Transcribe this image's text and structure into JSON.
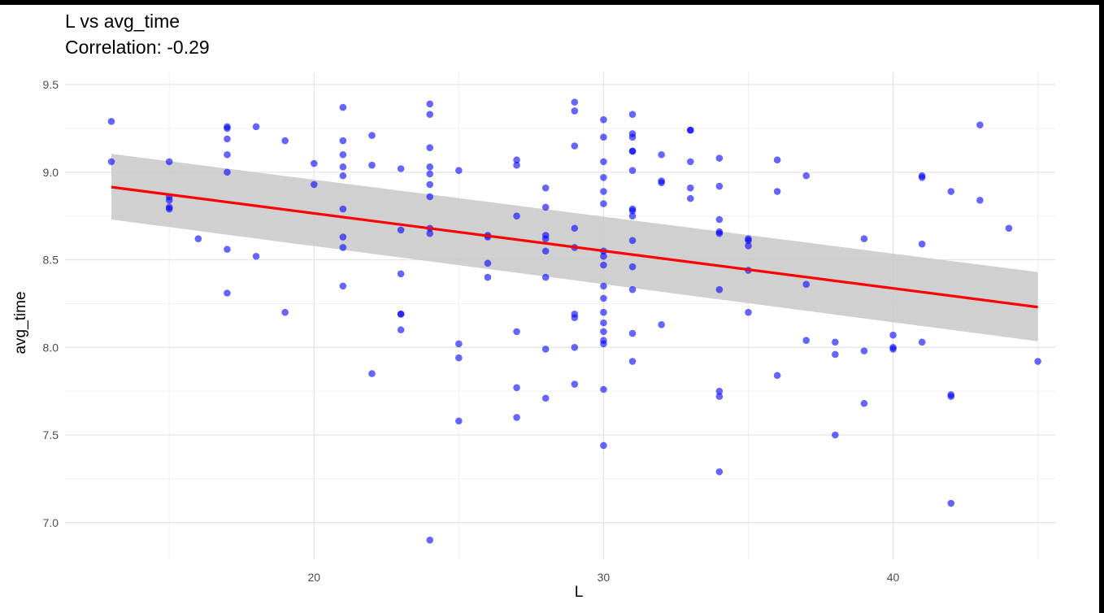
{
  "chart_data": {
    "type": "scatter",
    "title": "L vs avg_time",
    "subtitle": "Correlation: -0.29",
    "xlabel": "L",
    "ylabel": "avg_time",
    "xlim": [
      11.4,
      45.6
    ],
    "ylim": [
      6.79,
      9.57
    ],
    "x_ticks": [
      20,
      30,
      40
    ],
    "y_ticks": [
      7.0,
      7.5,
      8.0,
      8.5,
      9.0,
      9.5
    ],
    "grid": true,
    "legend": "none",
    "point_color": "#0000ff",
    "fit_color": "#ff0000",
    "band_color": "#c8c8c8",
    "fit_line": {
      "x": [
        13,
        45
      ],
      "y": [
        8.915,
        8.23
      ]
    },
    "confidence_band": {
      "x": [
        13,
        45
      ],
      "upper": [
        9.105,
        8.43
      ],
      "lower": [
        8.73,
        8.035
      ]
    },
    "points": [
      [
        13,
        9.29
      ],
      [
        13,
        9.06
      ],
      [
        15,
        9.06
      ],
      [
        15,
        8.86
      ],
      [
        15,
        8.84
      ],
      [
        15,
        8.79
      ],
      [
        15,
        8.8
      ],
      [
        16,
        8.62
      ],
      [
        17,
        9.26
      ],
      [
        17,
        9.25
      ],
      [
        17,
        9.19
      ],
      [
        17,
        9.1
      ],
      [
        17,
        9.0
      ],
      [
        17,
        8.56
      ],
      [
        17,
        8.31
      ],
      [
        18,
        9.26
      ],
      [
        18,
        8.52
      ],
      [
        19,
        9.18
      ],
      [
        19,
        8.2
      ],
      [
        20,
        9.05
      ],
      [
        20,
        8.93
      ],
      [
        21,
        9.37
      ],
      [
        21,
        9.18
      ],
      [
        21,
        9.1
      ],
      [
        21,
        9.03
      ],
      [
        21,
        8.98
      ],
      [
        21,
        8.79
      ],
      [
        21,
        8.63
      ],
      [
        21,
        8.57
      ],
      [
        21,
        8.35
      ],
      [
        22,
        9.21
      ],
      [
        22,
        9.04
      ],
      [
        22,
        7.85
      ],
      [
        23,
        9.02
      ],
      [
        23,
        8.67
      ],
      [
        23,
        8.42
      ],
      [
        23,
        8.19
      ],
      [
        23,
        8.19
      ],
      [
        23,
        8.1
      ],
      [
        24,
        9.39
      ],
      [
        24,
        9.33
      ],
      [
        24,
        9.14
      ],
      [
        24,
        9.03
      ],
      [
        24,
        8.99
      ],
      [
        24,
        8.93
      ],
      [
        24,
        8.86
      ],
      [
        24,
        8.68
      ],
      [
        24,
        8.65
      ],
      [
        24,
        6.9
      ],
      [
        25,
        9.01
      ],
      [
        25,
        8.02
      ],
      [
        25,
        7.94
      ],
      [
        25,
        7.58
      ],
      [
        26,
        8.64
      ],
      [
        26,
        8.63
      ],
      [
        26,
        8.48
      ],
      [
        26,
        8.4
      ],
      [
        27,
        9.07
      ],
      [
        27,
        9.04
      ],
      [
        27,
        8.75
      ],
      [
        27,
        8.09
      ],
      [
        27,
        7.77
      ],
      [
        27,
        7.6
      ],
      [
        28,
        8.91
      ],
      [
        28,
        8.8
      ],
      [
        28,
        8.64
      ],
      [
        28,
        8.62
      ],
      [
        28,
        8.55
      ],
      [
        28,
        8.4
      ],
      [
        28,
        7.99
      ],
      [
        28,
        7.71
      ],
      [
        29,
        9.4
      ],
      [
        29,
        9.35
      ],
      [
        29,
        9.15
      ],
      [
        29,
        8.68
      ],
      [
        29,
        8.57
      ],
      [
        29,
        8.19
      ],
      [
        29,
        8.17
      ],
      [
        29,
        8.0
      ],
      [
        29,
        7.79
      ],
      [
        30,
        9.3
      ],
      [
        30,
        9.2
      ],
      [
        30,
        9.06
      ],
      [
        30,
        8.97
      ],
      [
        30,
        8.89
      ],
      [
        30,
        8.82
      ],
      [
        30,
        8.55
      ],
      [
        30,
        8.52
      ],
      [
        30,
        8.47
      ],
      [
        30,
        8.35
      ],
      [
        30,
        8.28
      ],
      [
        30,
        8.2
      ],
      [
        30,
        8.14
      ],
      [
        30,
        8.09
      ],
      [
        30,
        8.04
      ],
      [
        30,
        8.02
      ],
      [
        30,
        7.76
      ],
      [
        30,
        7.44
      ],
      [
        31,
        9.33
      ],
      [
        31,
        9.22
      ],
      [
        31,
        9.2
      ],
      [
        31,
        9.12
      ],
      [
        31,
        9.12
      ],
      [
        31,
        9.01
      ],
      [
        31,
        8.79
      ],
      [
        31,
        8.78
      ],
      [
        31,
        8.75
      ],
      [
        31,
        8.61
      ],
      [
        31,
        8.46
      ],
      [
        31,
        8.33
      ],
      [
        31,
        8.08
      ],
      [
        31,
        7.92
      ],
      [
        32,
        9.1
      ],
      [
        32,
        8.95
      ],
      [
        32,
        8.94
      ],
      [
        32,
        8.13
      ],
      [
        33,
        9.24
      ],
      [
        33,
        9.24
      ],
      [
        33,
        9.06
      ],
      [
        33,
        8.91
      ],
      [
        33,
        8.85
      ],
      [
        34,
        9.08
      ],
      [
        34,
        8.92
      ],
      [
        34,
        8.73
      ],
      [
        34,
        8.66
      ],
      [
        34,
        8.65
      ],
      [
        34,
        8.33
      ],
      [
        34,
        7.75
      ],
      [
        34,
        7.72
      ],
      [
        34,
        7.29
      ],
      [
        35,
        8.62
      ],
      [
        35,
        8.61
      ],
      [
        35,
        8.58
      ],
      [
        35,
        8.44
      ],
      [
        35,
        8.2
      ],
      [
        36,
        9.07
      ],
      [
        36,
        8.89
      ],
      [
        36,
        7.84
      ],
      [
        37,
        8.98
      ],
      [
        37,
        8.36
      ],
      [
        37,
        8.04
      ],
      [
        38,
        8.03
      ],
      [
        38,
        7.96
      ],
      [
        38,
        7.5
      ],
      [
        39,
        8.62
      ],
      [
        39,
        7.98
      ],
      [
        39,
        7.68
      ],
      [
        40,
        8.07
      ],
      [
        40,
        8.0
      ],
      [
        40,
        7.99
      ],
      [
        41,
        8.98
      ],
      [
        41,
        8.97
      ],
      [
        41,
        8.59
      ],
      [
        41,
        8.03
      ],
      [
        42,
        8.89
      ],
      [
        42,
        7.73
      ],
      [
        42,
        7.72
      ],
      [
        42,
        7.11
      ],
      [
        43,
        9.27
      ],
      [
        43,
        8.84
      ],
      [
        44,
        8.68
      ],
      [
        45,
        7.92
      ]
    ]
  }
}
